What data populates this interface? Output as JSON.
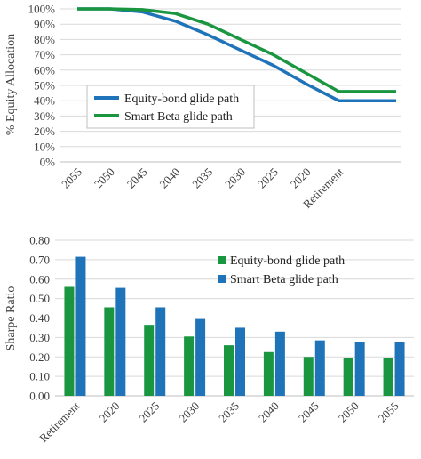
{
  "chart_data": [
    {
      "type": "line",
      "categories": [
        "2055",
        "2050",
        "2045",
        "2040",
        "2035",
        "2030",
        "2025",
        "2020",
        "Retirement"
      ],
      "ylabel": "% Equity Allocation",
      "ylim": [
        0,
        100
      ],
      "yticks": [
        "0%",
        "10%",
        "20%",
        "30%",
        "40%",
        "50%",
        "60%",
        "70%",
        "80%",
        "90%",
        "100%"
      ],
      "legend_position": "middle-left",
      "grid": true,
      "series": [
        {
          "name": "Equity-bond glide path",
          "color": "#1f73b8",
          "values": [
            100,
            100,
            98,
            92,
            83,
            73,
            63,
            51,
            40
          ]
        },
        {
          "name": "Smart Beta glide path",
          "color": "#1a9641",
          "values": [
            100,
            100,
            99.5,
            97,
            90,
            80,
            70,
            58,
            46
          ]
        }
      ],
      "flat_tail": {
        "Equity-bond glide path": 40,
        "Smart Beta glide path": 46
      }
    },
    {
      "type": "bar",
      "categories": [
        "Retirement",
        "2020",
        "2025",
        "2030",
        "2035",
        "2040",
        "2045",
        "2050",
        "2055"
      ],
      "ylabel": "Sharpe Ratio",
      "ylim": [
        0,
        0.8
      ],
      "yticks": [
        "0.00",
        "0.10",
        "0.20",
        "0.30",
        "0.40",
        "0.50",
        "0.60",
        "0.70",
        "0.80"
      ],
      "legend_position": "top-right",
      "grid": true,
      "series": [
        {
          "name": "Equity-bond glide path",
          "color": "#1a9641",
          "values": [
            0.56,
            0.455,
            0.365,
            0.305,
            0.26,
            0.225,
            0.2,
            0.195,
            0.195
          ]
        },
        {
          "name": "Smart Beta glide path",
          "color": "#1f73b8",
          "values": [
            0.715,
            0.555,
            0.455,
            0.395,
            0.35,
            0.33,
            0.285,
            0.275,
            0.275
          ]
        }
      ]
    }
  ]
}
